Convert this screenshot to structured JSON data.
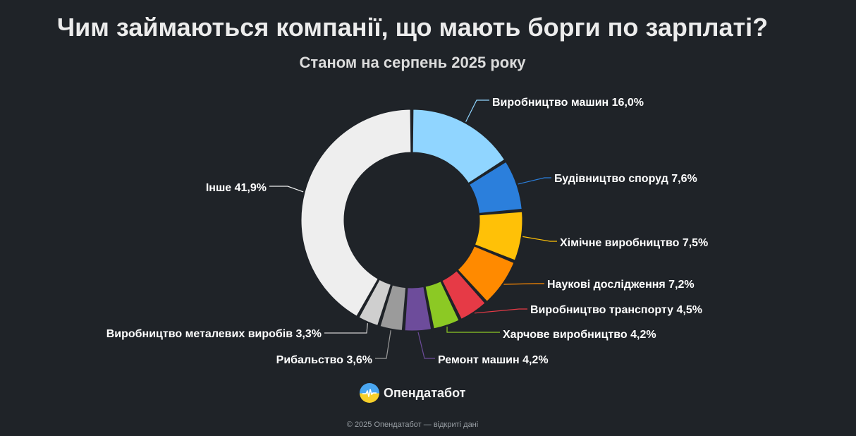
{
  "chart_data": {
    "type": "pie",
    "title": "Чим займаються компанії, що мають борги по зарплаті?",
    "subtitle": "Станом на серпень 2025 року",
    "unit": "%",
    "slices": [
      {
        "label": "Виробництво машин",
        "value_text": "16,0%",
        "value": 16.0,
        "color": "#90d5ff"
      },
      {
        "label": "Будівництво споруд",
        "value_text": "7,6%",
        "value": 7.6,
        "color": "#2b7fdc"
      },
      {
        "label": "Хімічне виробництво",
        "value_text": "7,5%",
        "value": 7.5,
        "color": "#ffc107"
      },
      {
        "label": "Наукові дослідження",
        "value_text": "7,2%",
        "value": 7.2,
        "color": "#ff8a00"
      },
      {
        "label": "Виробництво транспорту",
        "value_text": "4,5%",
        "value": 4.5,
        "color": "#e63a46"
      },
      {
        "label": "Харчове виробництво",
        "value_text": "4,2%",
        "value": 4.2,
        "color": "#8cc924"
      },
      {
        "label": "Ремонт машин",
        "value_text": "4,2%",
        "value": 4.2,
        "color": "#6d4c9b"
      },
      {
        "label": "Рибальство",
        "value_text": "3,6%",
        "value": 3.6,
        "color": "#9b9b9b"
      },
      {
        "label": "Виробництво металевих виробів",
        "value_text": "3,3%",
        "value": 3.3,
        "color": "#cfcfcf"
      },
      {
        "label": "Інше",
        "value_text": "41,9%",
        "value": 41.9,
        "color": "#eeeeee"
      }
    ]
  },
  "brand": {
    "name": "Опендатабот",
    "logo_icon": "opendatabot-logo-icon"
  },
  "footer": "© 2025 Опендатабот — відкриті дані"
}
